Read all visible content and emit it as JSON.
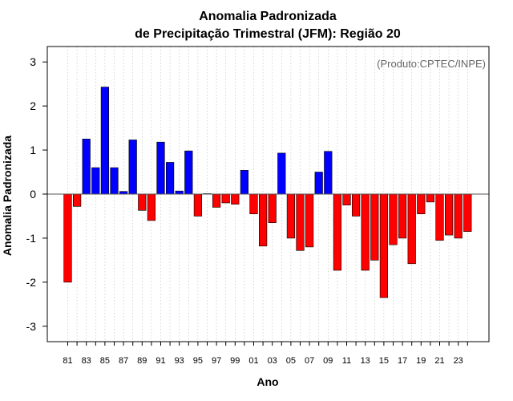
{
  "chart_data": {
    "type": "bar",
    "title_line1": "Anomalia Padronizada",
    "title_line2": "de Precipitação Trimestral (JFM): Região 20",
    "xlabel": "Ano",
    "ylabel": "Anomalia Padronizada",
    "credit": "(Produto:CPTEC/INPE)",
    "ylim": [
      -3.35,
      3.35
    ],
    "yticks": [
      -3,
      -2,
      -1,
      0,
      1,
      2,
      3
    ],
    "grid": "vertical dotted",
    "categories": [
      "81",
      "82",
      "83",
      "84",
      "85",
      "86",
      "87",
      "88",
      "89",
      "90",
      "91",
      "92",
      "93",
      "94",
      "95",
      "96",
      "97",
      "98",
      "99",
      "00",
      "01",
      "02",
      "03",
      "04",
      "05",
      "06",
      "07",
      "08",
      "09",
      "10",
      "11",
      "12",
      "13",
      "14",
      "15",
      "16",
      "17",
      "18",
      "19",
      "20",
      "21",
      "22",
      "23",
      "24"
    ],
    "xtick_labels": [
      "81",
      "83",
      "85",
      "87",
      "89",
      "91",
      "93",
      "95",
      "97",
      "99",
      "01",
      "03",
      "05",
      "07",
      "09",
      "11",
      "13",
      "15",
      "17",
      "19",
      "21",
      "23"
    ],
    "values": [
      -2.0,
      -0.28,
      1.25,
      0.6,
      2.43,
      0.6,
      0.06,
      1.23,
      -0.37,
      -0.6,
      1.18,
      0.72,
      0.07,
      0.98,
      -0.5,
      0.01,
      -0.3,
      -0.2,
      -0.23,
      0.54,
      -0.45,
      -1.18,
      -0.65,
      0.93,
      -1.0,
      -1.28,
      -1.2,
      0.5,
      0.97,
      -1.73,
      -0.25,
      -0.5,
      -1.73,
      -1.5,
      -2.35,
      -1.15,
      -1.0,
      -1.58,
      -0.45,
      -0.18,
      -1.05,
      -0.93,
      -1.0,
      -0.85
    ],
    "colors": {
      "positive": "#0000ff",
      "negative": "#ff0000",
      "axis": "#000000",
      "grid": "#bbbbbb",
      "zero_line": "#555555",
      "bar_border": "#000000"
    }
  }
}
